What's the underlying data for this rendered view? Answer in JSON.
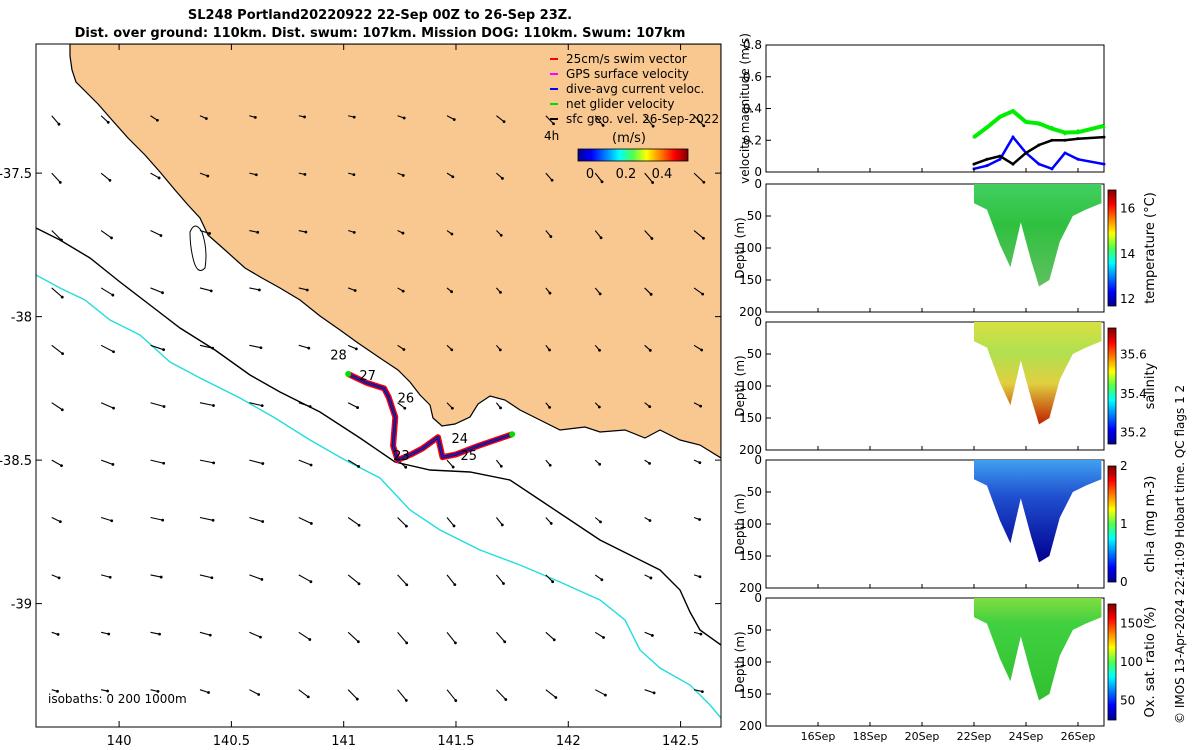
{
  "title_line1": "SL248 Portland20220922 22-Sep 00Z to 26-Sep 23Z.",
  "title_line2": "Dist. over ground: 110km. Dist. swum: 107km. Mission DOG: 110km. Swum: 107km",
  "footer_text": "© IMOS 13-Apr-2024 22:41:09 Hobart time. QC flags 1  2",
  "map": {
    "x_ticks": [
      "140",
      "140.5",
      "141",
      "141.5",
      "142",
      "142.5"
    ],
    "x_tick_values": [
      140,
      140.5,
      141,
      141.5,
      142,
      142.5
    ],
    "y_ticks": [
      "-37.5",
      "-38",
      "-38.5",
      "-39"
    ],
    "y_tick_values": [
      -37.5,
      -38,
      -38.5,
      -39
    ],
    "xlim": [
      139.63,
      142.68
    ],
    "ylim": [
      -39.43,
      -37.05
    ],
    "legend": [
      {
        "label": "25cm/s swim vector",
        "color": "#ff0000"
      },
      {
        "label": "GPS surface velocity",
        "color": "#ff00ff"
      },
      {
        "label": "dive-avg current veloc.",
        "color": "#0000ff"
      },
      {
        "label": "net glider velocity",
        "color": "#00dd00"
      },
      {
        "label": "sfc geo. vel. 26-Sep-2022",
        "color": "#000000"
      }
    ],
    "track_label": "4h",
    "colorbar_title": "(m/s)",
    "colorbar_ticks": [
      "0",
      "0.2",
      "0.4"
    ],
    "isobath_label": "isobaths: 0   200  1000m",
    "day_labels": [
      {
        "text": "28",
        "lon": 140.94,
        "lat": -38.15
      },
      {
        "text": "27",
        "lon": 141.07,
        "lat": -38.22
      },
      {
        "text": "26",
        "lon": 141.24,
        "lat": -38.3
      },
      {
        "text": "24",
        "lon": 141.48,
        "lat": -38.44
      },
      {
        "text": "23",
        "lon": 141.22,
        "lat": -38.5
      },
      {
        "text": "25",
        "lon": 141.52,
        "lat": -38.5
      }
    ],
    "land_color": "#f9c891",
    "isobath_200_color": "#000000",
    "isobath_1000_color": "#22dddd"
  },
  "panels": {
    "x_ticks": [
      "16Sep",
      "18Sep",
      "20Sep",
      "22Sep",
      "24Sep",
      "26Sep"
    ],
    "velocity": {
      "ylabel": "velocity magnitude (m/s)",
      "y_ticks": [
        "0",
        "0.2",
        "0.4",
        "0.6",
        "0.8"
      ]
    },
    "sections": [
      {
        "name": "temperature",
        "cbar_label": "temperature (°C)",
        "cbar_ticks": [
          "12",
          "14",
          "16"
        ],
        "cbar_tick_fracs": [
          0.06,
          0.45,
          0.84
        ],
        "ylabel": "Depth (m)",
        "y_ticks": [
          "0",
          "50",
          "100",
          "150",
          "200"
        ]
      },
      {
        "name": "salinity",
        "cbar_label": "salinity",
        "cbar_ticks": [
          "35.2",
          "35.4",
          "35.6"
        ],
        "cbar_tick_fracs": [
          0.1,
          0.43,
          0.77
        ],
        "ylabel": "Depth (m)",
        "y_ticks": [
          "0",
          "50",
          "100",
          "150",
          "200"
        ]
      },
      {
        "name": "chla",
        "cbar_label": "chl-a (mg m-3)",
        "cbar_ticks": [
          "0",
          "1",
          "2"
        ],
        "cbar_tick_fracs": [
          0.0,
          0.5,
          1.0
        ],
        "ylabel": "Depth (m)",
        "y_ticks": [
          "0",
          "50",
          "100",
          "150",
          "200"
        ]
      },
      {
        "name": "oxygen",
        "cbar_label": "Ox. sat. ratio (%)",
        "cbar_ticks": [
          "50",
          "100",
          "150"
        ],
        "cbar_tick_fracs": [
          0.17,
          0.5,
          0.83
        ],
        "ylabel": "Depth (m)",
        "y_ticks": [
          "0",
          "50",
          "100",
          "150",
          "200"
        ]
      }
    ]
  },
  "chart_data": [
    {
      "type": "line",
      "title": "velocity magnitude",
      "ylabel": "velocity magnitude (m/s)",
      "ylim": [
        0,
        0.8
      ],
      "xlim": [
        "14Sep",
        "27Sep"
      ],
      "series": [
        {
          "color": "#00ee00",
          "x": [
            "22Sep",
            "22.5Sep",
            "23Sep",
            "23.5Sep",
            "24Sep",
            "24.5Sep",
            "25Sep",
            "25.5Sep",
            "26Sep",
            "27Sep"
          ],
          "y": [
            0.22,
            0.28,
            0.35,
            0.38,
            0.32,
            0.3,
            0.28,
            0.24,
            0.26,
            0.28
          ]
        },
        {
          "color": "#0000ff",
          "x": [
            "22Sep",
            "22.5Sep",
            "23Sep",
            "23.5Sep",
            "24Sep",
            "24.5Sep",
            "25Sep",
            "25.5Sep",
            "26Sep",
            "27Sep"
          ],
          "y": [
            0.02,
            0.04,
            0.08,
            0.22,
            0.12,
            0.05,
            0.02,
            0.12,
            0.08,
            0.05
          ]
        },
        {
          "color": "#000000",
          "x": [
            "22Sep",
            "22.5Sep",
            "23Sep",
            "23.5Sep",
            "24Sep",
            "24.5Sep",
            "25Sep",
            "25.5Sep",
            "26Sep",
            "27Sep"
          ],
          "y": [
            0.05,
            0.08,
            0.1,
            0.05,
            0.12,
            0.17,
            0.2,
            0.2,
            0.21,
            0.22
          ]
        }
      ]
    }
  ]
}
